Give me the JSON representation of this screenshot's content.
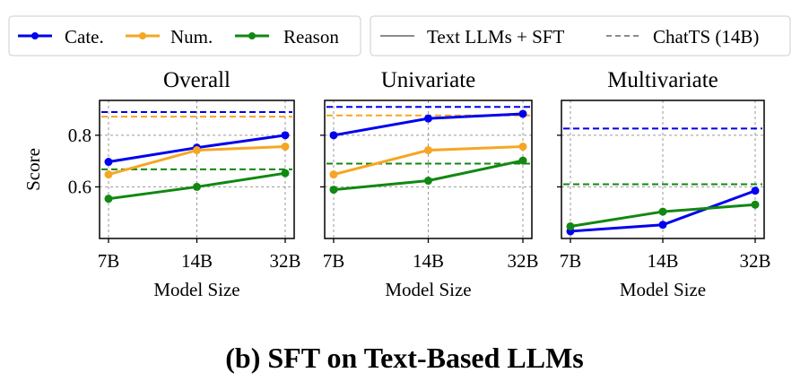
{
  "chart_data": [
    {
      "type": "line",
      "title": "Overall",
      "xlabel": "Model Size",
      "ylabel": "Score",
      "categories": [
        "7B",
        "14B",
        "32B"
      ],
      "ylim": [
        0.4,
        0.935
      ],
      "yticks": [
        "0.6",
        "0.8"
      ],
      "ytick_values": [
        0.6,
        0.8
      ],
      "series": [
        {
          "name": "Cate.",
          "values": [
            0.697,
            0.752,
            0.8
          ]
        },
        {
          "name": "Num.",
          "values": [
            0.648,
            0.742,
            0.756
          ]
        },
        {
          "name": "Reason",
          "values": [
            0.554,
            0.6,
            0.653
          ]
        }
      ],
      "baselines": [
        {
          "name": "Cate.",
          "value": 0.89
        },
        {
          "name": "Num.",
          "value": 0.872
        },
        {
          "name": "Reason",
          "value": 0.668
        }
      ]
    },
    {
      "type": "line",
      "title": "Univariate",
      "xlabel": "Model Size",
      "ylabel": "",
      "categories": [
        "7B",
        "14B",
        "32B"
      ],
      "ylim": [
        0.4,
        0.935
      ],
      "yticks": [
        "",
        ""
      ],
      "ytick_values": [
        0.6,
        0.8
      ],
      "series": [
        {
          "name": "Cate.",
          "values": [
            0.8,
            0.865,
            0.883
          ]
        },
        {
          "name": "Num.",
          "values": [
            0.648,
            0.742,
            0.756
          ]
        },
        {
          "name": "Reason",
          "values": [
            0.589,
            0.624,
            0.702
          ]
        }
      ],
      "baselines": [
        {
          "name": "Cate.",
          "value": 0.91
        },
        {
          "name": "Num.",
          "value": 0.877
        },
        {
          "name": "Reason",
          "value": 0.69
        }
      ]
    },
    {
      "type": "line",
      "title": "Multivariate",
      "xlabel": "Model Size",
      "ylabel": "",
      "categories": [
        "7B",
        "14B",
        "32B"
      ],
      "ylim": [
        0.4,
        0.935
      ],
      "yticks": [
        "",
        ""
      ],
      "ytick_values": [
        0.6,
        0.8
      ],
      "series": [
        {
          "name": "Cate.",
          "values": [
            0.428,
            0.453,
            0.585
          ]
        },
        {
          "name": "Reason",
          "values": [
            0.447,
            0.504,
            0.531
          ]
        }
      ],
      "baselines": [
        {
          "name": "Cate.",
          "value": 0.826
        },
        {
          "name": "Reason",
          "value": 0.61
        }
      ]
    }
  ],
  "legend": {
    "series": [
      "Cate.",
      "Num.",
      "Reason"
    ],
    "styles": [
      "Text LLMs + SFT",
      "ChatTS (14B)"
    ]
  },
  "colors": {
    "Cate.": "#0000ee",
    "Num.": "#f5a623",
    "Reason": "#118811"
  },
  "caption": "(b) SFT on Text-Based LLMs"
}
